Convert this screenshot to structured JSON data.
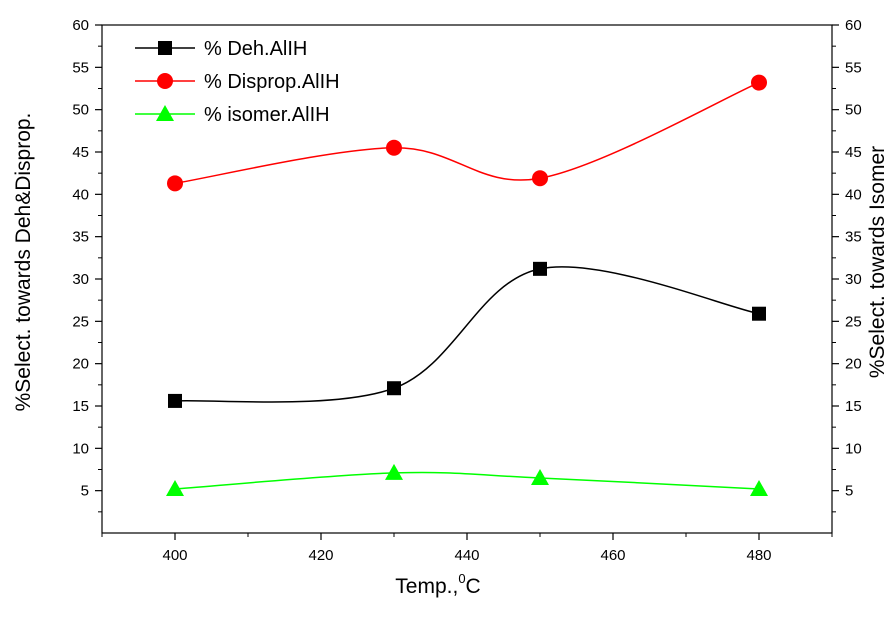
{
  "chart_data": {
    "type": "line",
    "xlabel": "Temp.,",
    "xlabel_sup": "0",
    "xlabel_unit": "C",
    "ylabel_left": "%Select. towards Deh&Disprop.",
    "ylabel_right": "%Select. towards Isomer",
    "xlim": [
      390,
      490
    ],
    "ylim": [
      0,
      60
    ],
    "x_ticks": [
      "400",
      "420",
      "440",
      "460",
      "480"
    ],
    "y_ticks_left": [
      "5",
      "10",
      "15",
      "20",
      "25",
      "30",
      "35",
      "40",
      "45",
      "50",
      "55",
      "60"
    ],
    "y_ticks_right": [
      "5",
      "10",
      "15",
      "20",
      "25",
      "30",
      "35",
      "40",
      "45",
      "50",
      "55",
      "60"
    ],
    "x": [
      400,
      430,
      450,
      480
    ],
    "series": [
      {
        "name": "% Deh.AlIH",
        "values": [
          15.6,
          17.1,
          31.2,
          25.9
        ],
        "color": "#000000",
        "marker": "square"
      },
      {
        "name": "% Disprop.AlIH",
        "values": [
          41.3,
          45.5,
          41.9,
          53.2
        ],
        "color": "#ff0000",
        "marker": "circle"
      },
      {
        "name": "% isomer.AlIH",
        "values": [
          5.2,
          7.1,
          6.5,
          5.2
        ],
        "color": "#00ff00",
        "marker": "triangle"
      }
    ],
    "grid": false,
    "legend_position": "top-left"
  }
}
